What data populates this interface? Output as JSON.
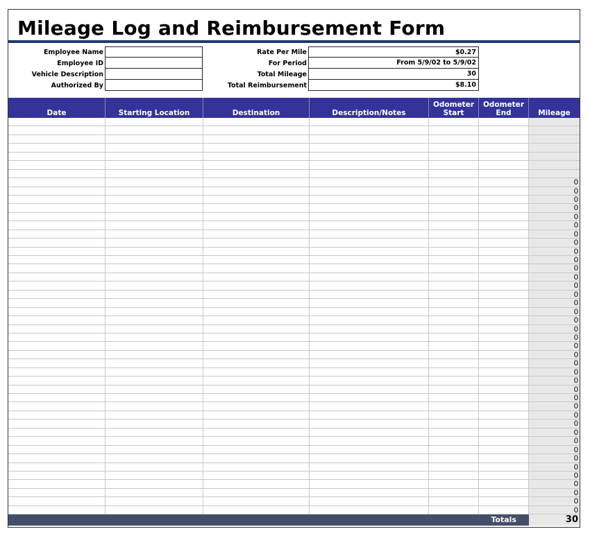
{
  "title": "Mileage Log and Reimbursement Form",
  "left_fields": [
    {
      "label": "Employee Name",
      "value": ""
    },
    {
      "label": "Employee ID",
      "value": ""
    },
    {
      "label": "Vehicle Description",
      "value": ""
    },
    {
      "label": "Authorized By",
      "value": ""
    }
  ],
  "right_fields": [
    {
      "label": "Rate Per Mile",
      "value": "$0.27"
    },
    {
      "label": "For Period",
      "value": "From 5/9/02 to 5/9/02"
    },
    {
      "label": "Total Mileage",
      "value": "30"
    },
    {
      "label": "Total Reimbursement",
      "value": "$8.10"
    }
  ],
  "columns": [
    "Date",
    "Starting Location",
    "Destination",
    "Description/Notes",
    "Odometer Start",
    "Odometer End",
    "Mileage"
  ],
  "mileage": [
    "",
    "",
    "",
    "",
    "",
    "",
    "",
    "0",
    "0",
    "0",
    "0",
    "0",
    "0",
    "0",
    "0",
    "0",
    "0",
    "0",
    "0",
    "0",
    "0",
    "0",
    "0",
    "0",
    "0",
    "0",
    "0",
    "0",
    "0",
    "0",
    "0",
    "0",
    "0",
    "0",
    "0",
    "0",
    "0",
    "0",
    "0",
    "0",
    "0",
    "0",
    "0",
    "0",
    "0",
    "0"
  ],
  "totals": {
    "label": "Totals",
    "value": "30"
  },
  "colors": {
    "header": "#333399",
    "totals_bar": "#444e6a",
    "title_rule": "#1f3a6b",
    "mileage_fill": "#e8e8e8"
  }
}
